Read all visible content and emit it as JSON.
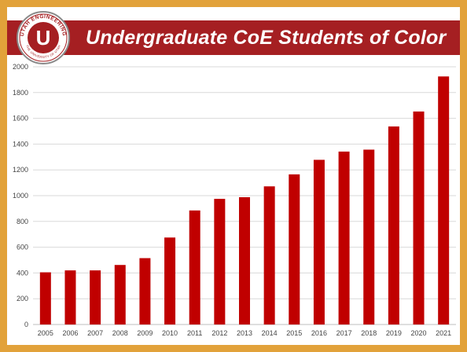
{
  "slide": {
    "title": "Undergraduate CoE Students of Color"
  },
  "logo": {
    "ring_text": "UTAH ENGINEERING",
    "ring_text_bottom": "THE UNIVERSITY OF UTAH",
    "letter": "U"
  },
  "colors": {
    "frame": "#e2a23a",
    "banner": "#a51f22",
    "bar": "#c00000",
    "gridline": "#d9d9d9"
  },
  "chart_data": {
    "type": "bar",
    "title": "Undergraduate CoE Students of Color",
    "xlabel": "",
    "ylabel": "",
    "categories": [
      "2005",
      "2006",
      "2007",
      "2008",
      "2009",
      "2010",
      "2011",
      "2012",
      "2013",
      "2014",
      "2015",
      "2016",
      "2017",
      "2018",
      "2019",
      "2020",
      "2021"
    ],
    "values": [
      405,
      420,
      420,
      462,
      515,
      675,
      885,
      975,
      988,
      1072,
      1165,
      1278,
      1342,
      1357,
      1537,
      1653,
      1925
    ],
    "ylim": [
      0,
      2000
    ],
    "yticks": [
      "0",
      "200",
      "400",
      "600",
      "800",
      "1000",
      "1200",
      "1400",
      "1600",
      "1800",
      "2000"
    ],
    "grid": true,
    "legend": "none"
  }
}
